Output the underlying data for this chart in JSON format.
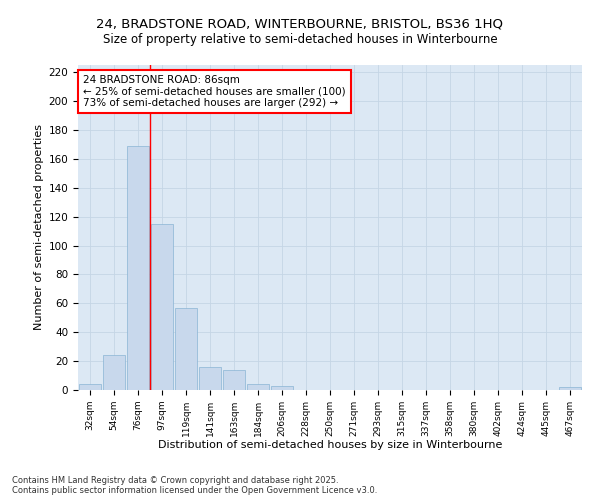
{
  "title1": "24, BRADSTONE ROAD, WINTERBOURNE, BRISTOL, BS36 1HQ",
  "title2": "Size of property relative to semi-detached houses in Winterbourne",
  "xlabel": "Distribution of semi-detached houses by size in Winterbourne",
  "ylabel": "Number of semi-detached properties",
  "bar_color": "#c8d8ec",
  "bar_edge_color": "#8ab4d4",
  "grid_color": "#c5d5e5",
  "background_color": "#dce8f4",
  "categories": [
    "32sqm",
    "54sqm",
    "76sqm",
    "97sqm",
    "119sqm",
    "141sqm",
    "163sqm",
    "184sqm",
    "206sqm",
    "228sqm",
    "250sqm",
    "271sqm",
    "293sqm",
    "315sqm",
    "337sqm",
    "358sqm",
    "380sqm",
    "402sqm",
    "424sqm",
    "445sqm",
    "467sqm"
  ],
  "values": [
    4,
    24,
    169,
    115,
    57,
    16,
    14,
    4,
    3,
    0,
    0,
    0,
    0,
    0,
    0,
    0,
    0,
    0,
    0,
    0,
    2
  ],
  "ylim": [
    0,
    225
  ],
  "yticks": [
    0,
    20,
    40,
    60,
    80,
    100,
    120,
    140,
    160,
    180,
    200,
    220
  ],
  "property_label": "24 BRADSTONE ROAD: 86sqm",
  "smaller_pct": 25,
  "smaller_count": 100,
  "larger_pct": 73,
  "larger_count": 292,
  "red_line_x": 2.5,
  "footer": "Contains HM Land Registry data © Crown copyright and database right 2025.\nContains public sector information licensed under the Open Government Licence v3.0."
}
